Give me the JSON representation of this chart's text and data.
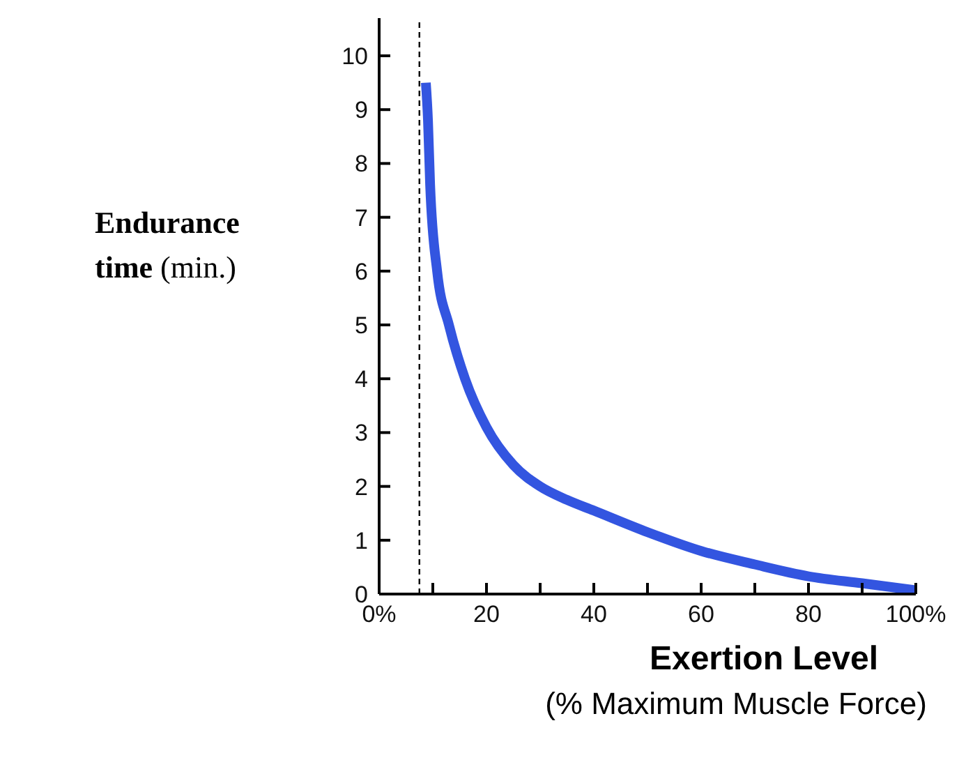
{
  "chart_data": {
    "type": "line",
    "xlabel": "Exertion Level (% Maximum Muscle Force)",
    "ylabel": "Endurance time (min.)",
    "x": [
      8.7,
      9.1,
      9.5,
      10.8,
      13,
      16,
      20,
      25,
      30,
      35,
      40,
      50,
      60,
      70,
      80,
      90,
      100
    ],
    "series": [
      {
        "color": "#3355e0",
        "values": [
          9.5,
          8.8,
          7.6,
          6.0,
          5.0,
          4.0,
          3.1,
          2.4,
          2.0,
          1.75,
          1.55,
          1.15,
          0.8,
          0.55,
          0.33,
          0.2,
          0.07
        ]
      }
    ],
    "xlim": [
      0,
      100
    ],
    "ylim": [
      0,
      10.7
    ],
    "xticks": [
      {
        "value": 0,
        "label": "0%"
      },
      {
        "value": 10,
        "label": null
      },
      20,
      {
        "value": 30,
        "label": null
      },
      40,
      {
        "value": 50,
        "label": null
      },
      60,
      {
        "value": 70,
        "label": null
      },
      80,
      {
        "value": 90,
        "label": null
      },
      {
        "value": 100,
        "label": "100%"
      }
    ],
    "yticks": [
      0,
      1,
      2,
      3,
      4,
      5,
      6,
      7,
      8,
      9,
      10
    ],
    "ref_lines": [
      {
        "axis": "x",
        "value": 7.5,
        "color": "#000000",
        "line_style": "dashed"
      }
    ],
    "marker": "none",
    "line_style": "solid",
    "grid": false,
    "legend": false
  }
}
